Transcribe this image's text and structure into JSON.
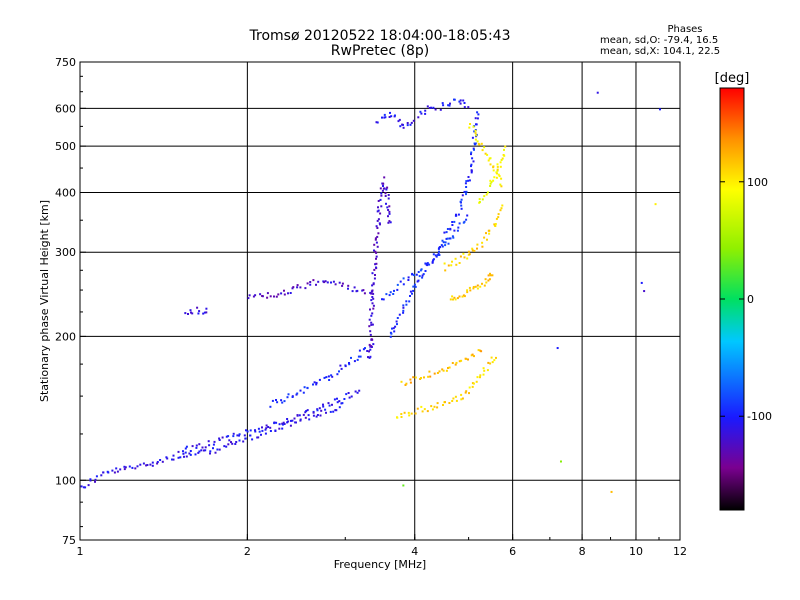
{
  "header": {
    "title_line1": "Tromsø 20120522 18:04:00-18:05:43",
    "title_line2": "RwPretec (8p)"
  },
  "phases_box": {
    "title": "Phases",
    "line_o": "mean, sd,O: -79.4, 16.5",
    "line_x": "mean, sd,X: 104.1, 22.5"
  },
  "colorbar": {
    "label": "[deg]",
    "ticks": [
      {
        "label": "100",
        "value": 100
      },
      {
        "label": "0",
        "value": 0
      },
      {
        "label": "-100",
        "value": -100
      }
    ],
    "range": [
      -180,
      180
    ]
  },
  "chart_data": {
    "type": "scatter",
    "title": "Tromsø 20120522 18:04:00-18:05:43",
    "subtitle": "RwPretec (8p)",
    "xlabel": "Frequency [MHz]",
    "ylabel": "Stationary phase Virtual Height [km]",
    "xscale": "log",
    "yscale": "log",
    "xlim": [
      1,
      12
    ],
    "ylim": [
      75,
      750
    ],
    "grid": true,
    "x_ticks": [
      {
        "label": "1",
        "value": 1
      },
      {
        "label": "2",
        "value": 2
      },
      {
        "label": "4",
        "value": 4
      },
      {
        "label": "6",
        "value": 6
      },
      {
        "label": "8",
        "value": 8
      },
      {
        "label": "10",
        "value": 10
      },
      {
        "label": "12",
        "value": 12
      }
    ],
    "y_ticks": [
      {
        "label": "75",
        "value": 75
      },
      {
        "label": "100",
        "value": 100
      },
      {
        "label": "200",
        "value": 200
      },
      {
        "label": "300",
        "value": 300
      },
      {
        "label": "400",
        "value": 400
      },
      {
        "label": "500",
        "value": 500
      },
      {
        "label": "600",
        "value": 600
      },
      {
        "label": "750",
        "value": 750
      }
    ],
    "x_major_grid": [
      2,
      4,
      6,
      8,
      10
    ],
    "y_major_grid": [
      100,
      200,
      300,
      400,
      500,
      600
    ],
    "traces": [
      {
        "phase": -110,
        "points": [
          [
            1.0,
            97
          ],
          [
            1.1,
            104
          ],
          [
            1.25,
            107
          ],
          [
            1.45,
            112
          ],
          [
            1.7,
            115
          ],
          [
            2.0,
            123
          ],
          [
            2.2,
            128
          ],
          [
            2.5,
            135
          ],
          [
            2.8,
            140
          ],
          [
            3.0,
            145
          ]
        ]
      },
      {
        "phase": -105,
        "points": [
          [
            1.5,
            115
          ],
          [
            1.8,
            122
          ],
          [
            2.0,
            127
          ],
          [
            2.3,
            133
          ],
          [
            2.6,
            140
          ],
          [
            2.9,
            148
          ],
          [
            3.2,
            155
          ]
        ]
      },
      {
        "phase": -100,
        "points": [
          [
            2.2,
            145
          ],
          [
            2.5,
            155
          ],
          [
            2.8,
            165
          ],
          [
            3.0,
            175
          ],
          [
            3.2,
            185
          ],
          [
            3.4,
            195
          ]
        ]
      },
      {
        "phase": -120,
        "points": [
          [
            2.0,
            243
          ],
          [
            2.2,
            245
          ],
          [
            2.4,
            250
          ],
          [
            2.6,
            260
          ],
          [
            2.8,
            262
          ],
          [
            3.0,
            255
          ],
          [
            3.2,
            250
          ],
          [
            3.4,
            248
          ]
        ]
      },
      {
        "phase": -110,
        "points": [
          [
            1.55,
            225
          ],
          [
            1.62,
            228
          ],
          [
            1.7,
            226
          ]
        ]
      },
      {
        "phase": -120,
        "points": [
          [
            3.3,
            180
          ],
          [
            3.35,
            250
          ],
          [
            3.4,
            320
          ],
          [
            3.45,
            380
          ],
          [
            3.5,
            430
          ],
          [
            3.55,
            400
          ],
          [
            3.6,
            340
          ]
        ]
      },
      {
        "phase": -105,
        "points": [
          [
            3.4,
            560
          ],
          [
            3.6,
            590
          ],
          [
            3.8,
            550
          ],
          [
            4.0,
            570
          ],
          [
            4.2,
            600
          ],
          [
            4.5,
            610
          ],
          [
            4.8,
            630
          ],
          [
            5.0,
            600
          ]
        ]
      },
      {
        "phase": -95,
        "points": [
          [
            3.6,
            200
          ],
          [
            3.8,
            230
          ],
          [
            4.0,
            260
          ],
          [
            4.2,
            280
          ],
          [
            4.5,
            320
          ],
          [
            4.8,
            370
          ],
          [
            5.0,
            430
          ],
          [
            5.1,
            520
          ],
          [
            5.15,
            600
          ]
        ]
      },
      {
        "phase": -90,
        "points": [
          [
            3.5,
            240
          ],
          [
            3.8,
            260
          ],
          [
            4.1,
            280
          ],
          [
            4.4,
            300
          ],
          [
            4.7,
            330
          ],
          [
            5.0,
            360
          ]
        ]
      },
      {
        "phase": 110,
        "points": [
          [
            3.7,
            135
          ],
          [
            3.9,
            140
          ],
          [
            4.2,
            142
          ],
          [
            4.5,
            145
          ],
          [
            4.8,
            150
          ],
          [
            5.0,
            155
          ],
          [
            5.2,
            165
          ],
          [
            5.4,
            175
          ],
          [
            5.6,
            185
          ]
        ]
      },
      {
        "phase": 120,
        "points": [
          [
            3.8,
            160
          ],
          [
            4.1,
            165
          ],
          [
            4.4,
            170
          ],
          [
            4.7,
            175
          ],
          [
            5.0,
            180
          ],
          [
            5.3,
            190
          ]
        ]
      },
      {
        "phase": 115,
        "points": [
          [
            4.6,
            240
          ],
          [
            4.8,
            245
          ],
          [
            5.0,
            250
          ],
          [
            5.2,
            255
          ],
          [
            5.4,
            265
          ],
          [
            5.5,
            275
          ]
        ]
      },
      {
        "phase": 110,
        "points": [
          [
            4.5,
            280
          ],
          [
            4.8,
            290
          ],
          [
            5.0,
            300
          ],
          [
            5.2,
            310
          ],
          [
            5.4,
            330
          ],
          [
            5.6,
            350
          ],
          [
            5.7,
            380
          ]
        ]
      },
      {
        "phase": 90,
        "points": [
          [
            5.2,
            380
          ],
          [
            5.4,
            410
          ],
          [
            5.6,
            440
          ],
          [
            5.7,
            470
          ],
          [
            5.8,
            500
          ]
        ]
      },
      {
        "phase": 100,
        "points": [
          [
            5.0,
            560
          ],
          [
            5.2,
            520
          ],
          [
            5.4,
            480
          ],
          [
            5.6,
            440
          ],
          [
            5.7,
            410
          ]
        ]
      }
    ],
    "isolated_points": [
      {
        "x": 7.2,
        "y": 190,
        "phase": -100
      },
      {
        "x": 8.5,
        "y": 650,
        "phase": -110
      },
      {
        "x": 10.2,
        "y": 260,
        "phase": -100
      },
      {
        "x": 10.3,
        "y": 250,
        "phase": -120
      },
      {
        "x": 11.0,
        "y": 600,
        "phase": -100
      },
      {
        "x": 10.8,
        "y": 380,
        "phase": 100
      },
      {
        "x": 9.0,
        "y": 95,
        "phase": 120
      },
      {
        "x": 3.8,
        "y": 98,
        "phase": 30
      },
      {
        "x": 7.3,
        "y": 110,
        "phase": 40
      }
    ]
  }
}
